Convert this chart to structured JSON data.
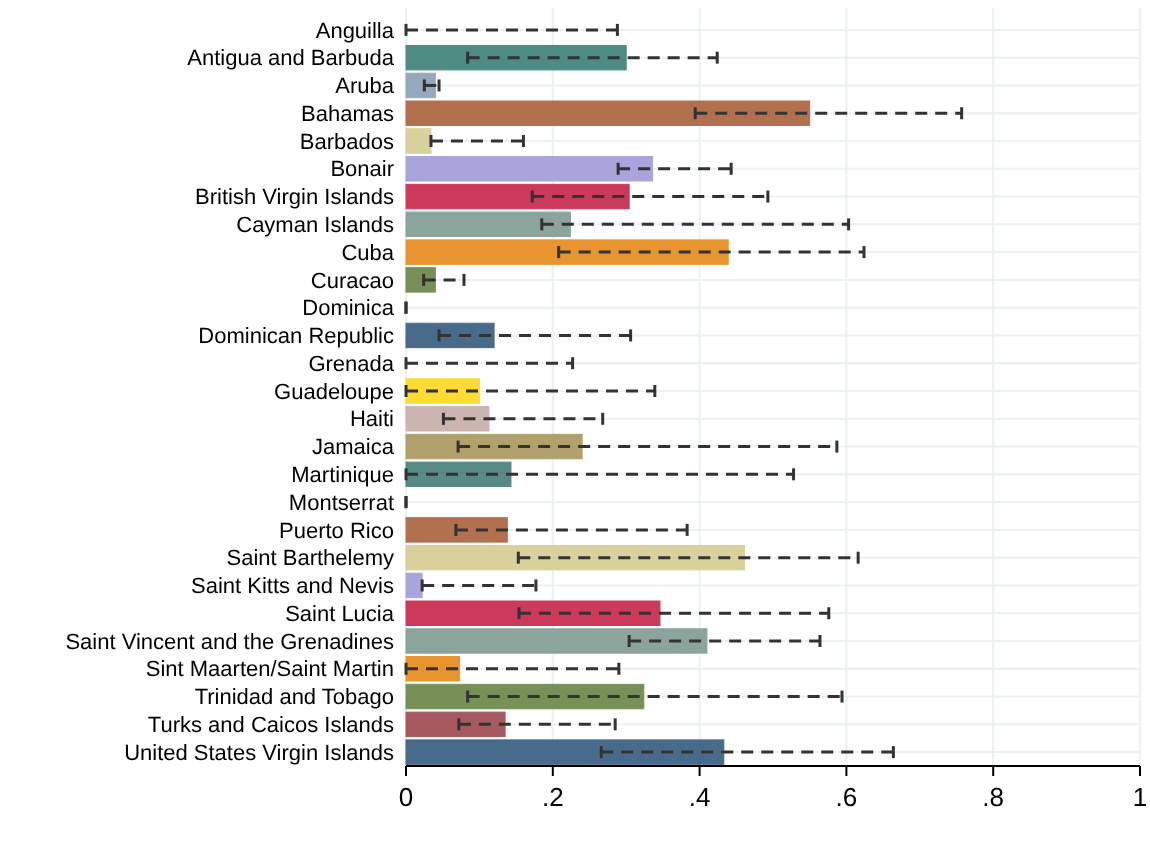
{
  "chart_data": {
    "type": "bar",
    "orientation": "horizontal",
    "categories": [
      "Anguilla",
      "Antigua and Barbuda",
      "Aruba",
      "Bahamas",
      "Barbados",
      "Bonair",
      "British Virgin Islands",
      "Cayman Islands",
      "Cuba",
      "Curacao",
      "Dominica",
      "Dominican Republic",
      "Grenada",
      "Guadeloupe",
      "Haiti",
      "Jamaica",
      "Martinique",
      "Montserrat",
      "Puerto Rico",
      "Saint Barthelemy",
      "Saint Kitts and Nevis",
      "Saint Lucia",
      "Saint Vincent and the Grenadines",
      "Sint Maarten/Saint Martin",
      "Trinidad and Tobago",
      "Turks and Caicos Islands",
      "United States Virgin Islands"
    ],
    "values": [
      0,
      0.3,
      0.04,
      0.55,
      0.034,
      0.336,
      0.304,
      0.224,
      0.439,
      0.04,
      0,
      0.12,
      0,
      0.1,
      0.113,
      0.24,
      0.143,
      0,
      0.138,
      0.461,
      0.022,
      0.346,
      0.41,
      0.073,
      0.324,
      0.135,
      0.433
    ],
    "errors": [
      [
        0,
        0.288
      ],
      [
        0.084,
        0.424
      ],
      [
        0.025,
        0.045
      ],
      [
        0.394,
        0.757
      ],
      [
        0.034,
        0.16
      ],
      [
        0.289,
        0.443
      ],
      [
        0.172,
        0.493
      ],
      [
        0.185,
        0.603
      ],
      [
        0.208,
        0.624
      ],
      [
        0.024,
        0.079
      ],
      [
        0,
        0
      ],
      [
        0.045,
        0.306
      ],
      [
        0,
        0.227
      ],
      [
        0,
        0.339
      ],
      [
        0.051,
        0.268
      ],
      [
        0.071,
        0.587
      ],
      [
        0,
        0.528
      ],
      [
        0,
        0
      ],
      [
        0.068,
        0.383
      ],
      [
        0.153,
        0.616
      ],
      [
        0.022,
        0.177
      ],
      [
        0.154,
        0.576
      ],
      [
        0.304,
        0.564
      ],
      [
        0,
        0.29
      ],
      [
        0.084,
        0.594
      ],
      [
        0.072,
        0.285
      ],
      [
        0.266,
        0.664
      ]
    ],
    "colors": [
      "#95a8bc",
      "#4e8b82",
      "#95a8bc",
      "#b3704f",
      "#d9d19b",
      "#a9a4dc",
      "#cb3a5b",
      "#8ba59d",
      "#e8952f",
      "#779058",
      "#a45a5f",
      "#486b8c",
      "#bfa19c",
      "#ffdb33",
      "#ccb4b0",
      "#b0a06c",
      "#578a85",
      "#779058",
      "#b3704f",
      "#d9d19b",
      "#a9a4dc",
      "#cb3a5b",
      "#8ba59d",
      "#e8952f",
      "#779058",
      "#a65a5f",
      "#486b8c"
    ],
    "xlim": [
      0,
      1
    ],
    "xticks": [
      {
        "value": 0,
        "label": "0"
      },
      {
        "value": 0.2,
        "label": ".2"
      },
      {
        "value": 0.4,
        "label": ".4"
      },
      {
        "value": 0.6,
        "label": ".6"
      },
      {
        "value": 0.8,
        "label": ".8"
      },
      {
        "value": 1,
        "label": "1"
      }
    ],
    "grid": true
  }
}
